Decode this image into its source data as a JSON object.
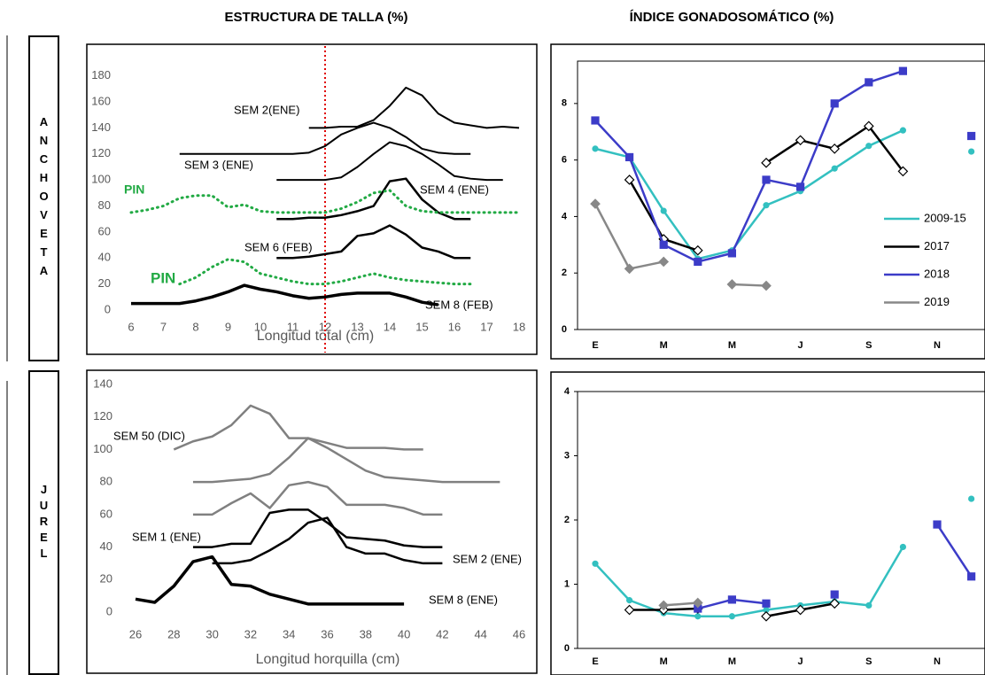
{
  "headers": [
    "ESTRUCTURA DE TALLA (%)",
    "ÍNDICE GONADOSOMÁTICO (%)"
  ],
  "row_labels": [
    "ANCHOVETA",
    "JUREL"
  ],
  "chart_data": [
    {
      "type": "line",
      "x_label": "Longitud total (cm)",
      "xlim": [
        6,
        18
      ],
      "xticks": [
        6,
        7,
        8,
        9,
        10,
        11,
        12,
        13,
        14,
        15,
        16,
        17,
        18
      ],
      "ylim": [
        0,
        190
      ],
      "yticks": [
        0,
        20,
        40,
        60,
        80,
        100,
        120,
        140,
        160,
        180
      ],
      "reference_line": {
        "x": 12,
        "color": "#e00000"
      },
      "series": [
        {
          "name": "SEM 8 (FEB)",
          "color": "#000000",
          "width": 3.5,
          "x": [
            6,
            6.5,
            7,
            7.5,
            8,
            8.5,
            9,
            9.5,
            10,
            10.5,
            11,
            11.5,
            12,
            12.5,
            13,
            13.5,
            14,
            14.5,
            15,
            15.5
          ],
          "values": [
            5,
            5,
            5,
            5,
            7,
            10,
            14,
            19,
            16,
            14,
            11,
            9,
            10,
            12,
            13,
            13,
            13,
            10,
            6,
            4
          ]
        },
        {
          "name": "PIN",
          "color": "#22aa44",
          "width": 3,
          "dash": "dotted",
          "x": [
            7.5,
            8,
            8.5,
            9,
            9.5,
            10,
            10.5,
            11,
            11.5,
            12,
            12.5,
            13,
            13.5,
            14,
            14.5,
            15,
            15.5,
            16,
            16.5
          ],
          "values": [
            20,
            25,
            33,
            39,
            37,
            28,
            25,
            22,
            20,
            20,
            22,
            25,
            28,
            25,
            23,
            22,
            21,
            20,
            20
          ]
        },
        {
          "name": "SEM 6 (FEB)",
          "color": "#000000",
          "width": 2.5,
          "x": [
            10.5,
            11,
            11.5,
            12,
            12.5,
            13,
            13.5,
            14,
            14.5,
            15,
            15.5,
            16,
            16.5
          ],
          "values": [
            40,
            40,
            41,
            43,
            45,
            57,
            59,
            65,
            58,
            48,
            45,
            40,
            40
          ]
        },
        {
          "name": "SEM 4 (ENE)",
          "color": "#000000",
          "width": 2.5,
          "x": [
            10.5,
            11,
            11.5,
            12,
            12.5,
            13,
            13.5,
            14,
            14.5,
            15,
            15.5,
            16,
            16.5
          ],
          "values": [
            70,
            70,
            71,
            71,
            73,
            76,
            80,
            99,
            101,
            85,
            75,
            70,
            70
          ]
        },
        {
          "name": "PIN",
          "color": "#22aa44",
          "width": 3,
          "dash": "dotted",
          "x": [
            6,
            6.5,
            7,
            7.5,
            8,
            8.5,
            9,
            9.5,
            10,
            10.5,
            11,
            11.5,
            12,
            12.5,
            13,
            13.5,
            14,
            14.5,
            15,
            15.5,
            16,
            16.5,
            17,
            17.5,
            18
          ],
          "values": [
            75,
            77,
            80,
            86,
            88,
            88,
            79,
            81,
            76,
            75,
            75,
            75,
            75,
            78,
            83,
            90,
            92,
            80,
            76,
            75,
            75,
            75,
            75,
            75,
            75
          ]
        },
        {
          "name": "SEM 3 (ENE)",
          "color": "#000000",
          "width": 2,
          "x": [
            10.5,
            11,
            11.5,
            12,
            12.5,
            13,
            13.5,
            14,
            14.5,
            15,
            15.5,
            16,
            16.5,
            17,
            17.5
          ],
          "values": [
            100,
            100,
            100,
            100,
            102,
            110,
            120,
            129,
            126,
            120,
            112,
            103,
            101,
            100,
            100
          ]
        },
        {
          "name": "SEM 2(ENE)",
          "color": "#000000",
          "width": 2,
          "x": [
            7.5,
            8,
            8.5,
            9,
            9.5,
            10,
            10.5,
            11,
            11.5,
            12,
            12.5,
            13,
            13.5,
            14,
            14.5,
            15,
            15.5,
            16,
            16.5
          ],
          "values": [
            120,
            120,
            120,
            120,
            120,
            120,
            120,
            120,
            121,
            126,
            135,
            140,
            144,
            140,
            133,
            124,
            121,
            120,
            120
          ]
        },
        {
          "color": "#000000",
          "width": 2,
          "x": [
            11.5,
            12,
            12.5,
            13,
            13.5,
            14,
            14.5,
            15,
            15.5,
            16,
            16.5,
            17,
            17.5,
            18
          ],
          "values": [
            140,
            140,
            141,
            141,
            146,
            157,
            171,
            165,
            151,
            144,
            142,
            140,
            141,
            140
          ]
        }
      ]
    },
    {
      "type": "line",
      "legend": "right",
      "categories": [
        "E",
        null,
        "M",
        null,
        "M",
        null,
        "J",
        null,
        "S",
        null,
        "N",
        null
      ],
      "ylim": [
        0,
        9.5
      ],
      "yticks": [
        0,
        2,
        4,
        6,
        8
      ],
      "series": [
        {
          "name": "2009-15",
          "color": "#33c0c0",
          "marker": "circle",
          "values": [
            6.4,
            6.1,
            4.2,
            2.5,
            2.8,
            4.4,
            4.9,
            5.7,
            6.5,
            7.05,
            null,
            6.3
          ]
        },
        {
          "name": "2017",
          "color": "#000000",
          "marker": "diamond",
          "marker_fill": "#ffffff",
          "values": [
            null,
            5.3,
            3.2,
            2.8,
            null,
            5.9,
            6.7,
            6.4,
            7.2,
            5.6,
            null,
            null
          ]
        },
        {
          "name": "2018",
          "color": "#3c3cc8",
          "marker": "square",
          "values": [
            7.4,
            6.1,
            3.0,
            2.4,
            2.7,
            5.3,
            5.05,
            8.0,
            8.75,
            9.15,
            null,
            6.85
          ]
        },
        {
          "name": "2019",
          "color": "#888888",
          "marker": "diamond",
          "values": [
            4.45,
            2.15,
            2.4,
            null,
            1.6,
            1.55,
            null,
            null,
            null,
            null,
            null,
            null
          ]
        }
      ]
    },
    {
      "type": "line",
      "x_label": "Longitud horquilla (cm)",
      "xlim": [
        26,
        46
      ],
      "xticks": [
        26,
        28,
        30,
        32,
        34,
        36,
        38,
        40,
        42,
        44,
        46
      ],
      "ylim": [
        0,
        140
      ],
      "yticks": [
        0,
        20,
        40,
        60,
        80,
        100,
        120,
        140
      ],
      "series": [
        {
          "name": "SEM 8 (ENE)",
          "color": "#000000",
          "width": 3.5,
          "x": [
            26,
            27,
            28,
            29,
            30,
            31,
            32,
            33,
            34,
            35,
            36,
            37,
            38,
            39,
            40
          ],
          "values": [
            8,
            6,
            16,
            31,
            34,
            17,
            16,
            11,
            8,
            5,
            5,
            5,
            5,
            5,
            5
          ]
        },
        {
          "name": "SEM 2 (ENE)",
          "color": "#000000",
          "width": 2.5,
          "x": [
            30,
            31,
            32,
            33,
            34,
            35,
            36,
            37,
            38,
            39,
            40,
            41,
            42
          ],
          "values": [
            30,
            30,
            32,
            38,
            45,
            55,
            58,
            40,
            36,
            36,
            32,
            30,
            30
          ]
        },
        {
          "name": "SEM 1 (ENE)",
          "color": "#000000",
          "width": 2.5,
          "x": [
            29,
            30,
            31,
            32,
            33,
            34,
            35,
            36,
            37,
            38,
            39,
            40,
            41,
            42
          ],
          "values": [
            40,
            40,
            42,
            42,
            61,
            63,
            63,
            55,
            46,
            45,
            44,
            41,
            40,
            40
          ]
        },
        {
          "color": "#808080",
          "width": 2.5,
          "x": [
            29,
            30,
            31,
            32,
            33,
            34,
            35,
            36,
            37,
            38,
            39,
            40,
            41,
            42
          ],
          "values": [
            60,
            60,
            67,
            73,
            64,
            78,
            80,
            77,
            66,
            66,
            66,
            64,
            60,
            60
          ]
        },
        {
          "color": "#808080",
          "width": 2.5,
          "x": [
            29,
            30,
            31,
            32,
            33,
            34,
            35,
            36,
            37,
            38,
            39,
            40,
            41,
            42,
            43,
            44,
            45
          ],
          "values": [
            80,
            80,
            81,
            82,
            85,
            95,
            107,
            101,
            94,
            87,
            83,
            82,
            81,
            80,
            80,
            80,
            80
          ]
        },
        {
          "name": "SEM 50 (DIC)",
          "color": "#808080",
          "width": 2.5,
          "x": [
            28,
            29,
            30,
            31,
            32,
            33,
            34,
            35,
            36,
            37,
            38,
            39,
            40,
            41
          ],
          "values": [
            100,
            105,
            108,
            115,
            127,
            122,
            107,
            107,
            104,
            101,
            101,
            101,
            100,
            100
          ]
        }
      ]
    },
    {
      "type": "line",
      "categories": [
        "E",
        null,
        "M",
        null,
        "M",
        null,
        "J",
        null,
        "S",
        null,
        "N",
        null
      ],
      "ylim": [
        0,
        4
      ],
      "yticks": [
        0,
        1,
        2,
        3,
        4
      ],
      "series": [
        {
          "color": "#33c0c0",
          "marker": "circle",
          "values": [
            1.32,
            0.75,
            0.55,
            0.5,
            0.5,
            0.6,
            0.67,
            0.73,
            0.67,
            1.58,
            null,
            2.33
          ]
        },
        {
          "color": "#000000",
          "marker": "diamond",
          "marker_fill": "#ffffff",
          "values": [
            null,
            0.6,
            0.6,
            0.62,
            null,
            0.5,
            0.6,
            0.7,
            null,
            null,
            null,
            null
          ]
        },
        {
          "color": "#3c3cc8",
          "marker": "square",
          "values": [
            null,
            null,
            null,
            0.62,
            0.76,
            0.7,
            null,
            0.84,
            null,
            null,
            1.93,
            1.12
          ]
        },
        {
          "color": "#888888",
          "marker": "diamond",
          "values": [
            null,
            null,
            0.67,
            0.71,
            null,
            null,
            null,
            null,
            null,
            null,
            null,
            null
          ]
        }
      ]
    }
  ]
}
